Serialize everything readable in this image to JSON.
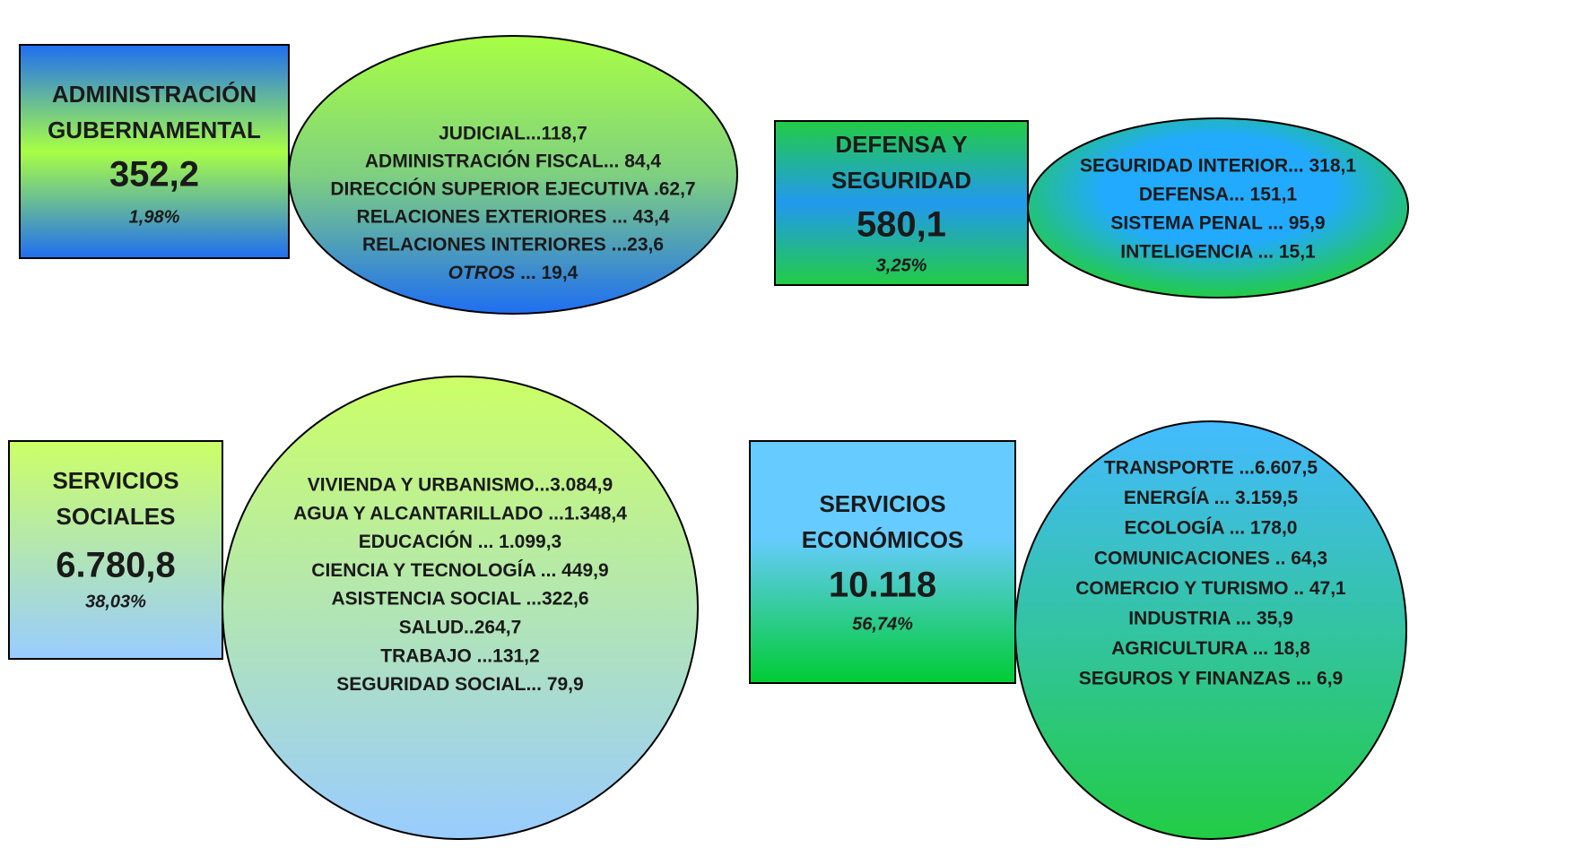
{
  "groups": [
    {
      "box": {
        "title": [
          "ADMINISTRACIÓN",
          "GUBERNAMENTAL"
        ],
        "total": "352,2",
        "percent": "1,98%"
      },
      "items": [
        "JUDICIAL...118,7",
        "ADMINISTRACIÓN FISCAL... 84,4",
        "DIRECCIÓN SUPERIOR EJECUTIVA .62,7",
        "RELACIONES EXTERIORES ... 43,4",
        "RELACIONES INTERIORES ...23,6",
        {
          "italic": "OTROS",
          "text": " ... 19,4"
        }
      ]
    },
    {
      "box": {
        "title": [
          "DEFENSA Y",
          "SEGURIDAD"
        ],
        "total": "580,1",
        "percent": "3,25%"
      },
      "items": [
        "SEGURIDAD INTERIOR... 318,1",
        "DEFENSA... 151,1",
        "SISTEMA PENAL ... 95,9",
        "INTELIGENCIA ... 15,1"
      ]
    },
    {
      "box": {
        "title": [
          "SERVICIOS",
          "SOCIALES"
        ],
        "total": "6.780,8",
        "percent": "38,03%"
      },
      "items": [
        "VIVIENDA Y URBANISMO...3.084,9",
        "AGUA Y ALCANTARILLADO ...1.348,4",
        "EDUCACIÓN ... 1.099,3",
        "CIENCIA Y TECNOLOGÍA ... 449,9",
        "ASISTENCIA SOCIAL ...322,6",
        "SALUD..264,7",
        "TRABAJO ...131,2",
        "SEGURIDAD SOCIAL... 79,9"
      ]
    },
    {
      "box": {
        "title": [
          "SERVICIOS",
          "ECONÓMICOS"
        ],
        "total": "10.118",
        "percent": "56,74%"
      },
      "items": [
        "TRANSPORTE ...6.607,5",
        "ENERGÍA ... 3.159,5",
        "ECOLOGÍA ... 178,0",
        "COMUNICACIONES .. 64,3",
        "COMERCIO Y TURISMO .. 47,1",
        "INDUSTRIA ... 35,9",
        "AGRICULTURA ... 18,8",
        "SEGUROS Y FINANZAS ... 6,9"
      ]
    }
  ]
}
